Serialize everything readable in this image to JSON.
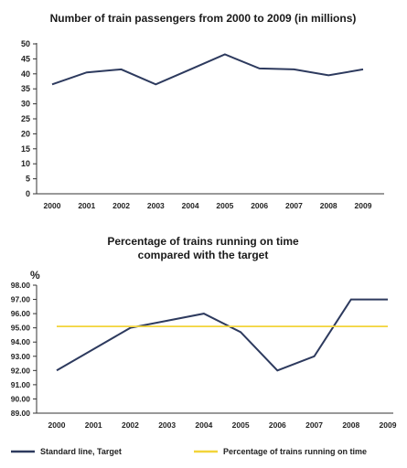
{
  "chart_data": [
    {
      "type": "line",
      "title": "Number of train passengers from 2000 to 2009 (in millions)",
      "xlabel": "",
      "ylabel": "",
      "categories": [
        "2000",
        "2001",
        "2002",
        "2003",
        "2004",
        "2005",
        "2006",
        "2007",
        "2008",
        "2009"
      ],
      "y_ticks": [
        "0",
        "5",
        "10",
        "15",
        "20",
        "25",
        "30",
        "35",
        "40",
        "45",
        "50"
      ],
      "ylim": [
        0,
        50
      ],
      "grid": false,
      "series": [
        {
          "values": [
            36.5,
            40.5,
            41.5,
            36.5,
            41.5,
            46.5,
            41.8,
            41.5,
            39.5,
            41.5
          ],
          "color": "#2d3a5e"
        }
      ]
    },
    {
      "type": "line",
      "title_lines": [
        "Percentage of trains running on time",
        "compared with the target"
      ],
      "unit_label": "%",
      "xlabel": "",
      "ylabel": "",
      "categories": [
        "2000",
        "2001",
        "2002",
        "2003",
        "2004",
        "2005",
        "2006",
        "2007",
        "2008",
        "2009"
      ],
      "y_ticks": [
        "89.00",
        "90.00",
        "91.00",
        "92.00",
        "93.00",
        "94.00",
        "95.00",
        "96.00",
        "97.00",
        "98.00"
      ],
      "ylim": [
        89,
        98
      ],
      "grid": false,
      "series": [
        {
          "name": "Standard line, Target",
          "values": [
            92.0,
            93.5,
            95.0,
            95.5,
            96.0,
            94.7,
            92.0,
            93.0,
            97.0,
            97.0
          ],
          "color": "#2d3a5e"
        },
        {
          "name": "Percentage of trains running on time",
          "values": [
            95.1,
            95.1,
            95.1,
            95.1,
            95.1,
            95.1,
            95.1,
            95.1,
            95.1,
            95.1
          ],
          "color": "#f2d43a"
        }
      ],
      "legend_position": "bottom"
    }
  ]
}
